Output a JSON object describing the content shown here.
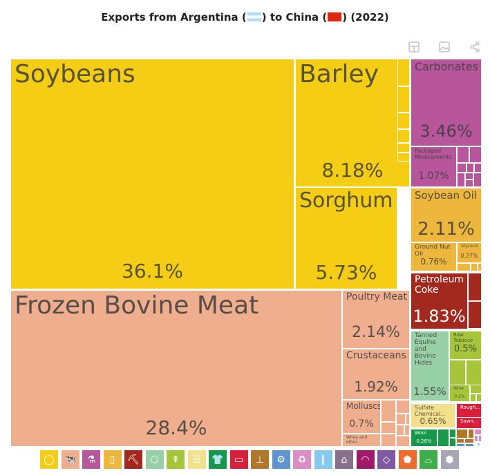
{
  "title": {
    "prefix": "Exports from Argentina (",
    "mid": ") to China (",
    "suffix": ") (2022)"
  },
  "toolbar": [
    "table-icon",
    "image-icon",
    "share-icon"
  ],
  "chart_data": {
    "type": "treemap",
    "title": "Exports from Argentina to China (2022)",
    "items": [
      {
        "name": "Soybeans",
        "value": "36.1%",
        "color": "#f5cd14"
      },
      {
        "name": "Frozen Bovine Meat",
        "value": "28.4%",
        "color": "#efae8e"
      },
      {
        "name": "Barley",
        "value": "8.18%",
        "color": "#f5cd14"
      },
      {
        "name": "Sorghum",
        "value": "5.73%",
        "color": "#f5cd14"
      },
      {
        "name": "Carbonates",
        "value": "3.46%",
        "color": "#b7569b"
      },
      {
        "name": "Poultry Meat",
        "value": "2.14%",
        "color": "#efae8e"
      },
      {
        "name": "Soybean Oil",
        "value": "2.11%",
        "color": "#edb63c"
      },
      {
        "name": "Crustaceans",
        "value": "1.92%",
        "color": "#efae8e"
      },
      {
        "name": "Petroleum Coke",
        "value": "1.83%",
        "color": "#a3291f"
      },
      {
        "name": "Tanned Equine and Bovine Hides",
        "value": "1.55%",
        "color": "#98d0a6"
      },
      {
        "name": "Packaged Medicaments",
        "value": "1.07%",
        "color": "#b7569b"
      },
      {
        "name": "Ground Nut Oil",
        "value": "0.76%",
        "color": "#edb63c"
      },
      {
        "name": "Molluscs",
        "value": "0.7%",
        "color": "#efae8e"
      },
      {
        "name": "Sulfate Chemical...",
        "value": "0.65%",
        "color": "#f3e08a"
      },
      {
        "name": "Raw Tobacco",
        "value": "0.5%",
        "color": "#a6c63a"
      },
      {
        "name": "Glycerol",
        "value": "0.27%",
        "color": "#edb63c"
      },
      {
        "name": "Wool",
        "value": "0.26%",
        "color": "#16994a"
      },
      {
        "name": "Wine",
        "value": "0.2%",
        "color": "#a6c63a"
      },
      {
        "name": "Whey and other...",
        "value": "",
        "color": "#efae8e"
      },
      {
        "name": "Rough...",
        "value": "",
        "color": "#da1f3d"
      },
      {
        "name": "Sawn...",
        "value": "",
        "color": "#da1f3d"
      }
    ]
  },
  "legend_icons": [
    {
      "icon": "fruit-icon",
      "color": "#f5cd14"
    },
    {
      "icon": "animal-icon",
      "color": "#efae8e"
    },
    {
      "icon": "flask-icon",
      "color": "#b7569b"
    },
    {
      "icon": "jar-icon",
      "color": "#edb63c"
    },
    {
      "icon": "pickaxe-icon",
      "color": "#a3291f"
    },
    {
      "icon": "hide-icon",
      "color": "#98d0a6"
    },
    {
      "icon": "wheat-icon",
      "color": "#a6c63a"
    },
    {
      "icon": "paper-icon",
      "color": "#f3e08a"
    },
    {
      "icon": "shirt-icon",
      "color": "#16994a"
    },
    {
      "icon": "plastic-icon",
      "color": "#da1f3d"
    },
    {
      "icon": "anvil-icon",
      "color": "#b0762a"
    },
    {
      "icon": "gear-icon",
      "color": "#5f94cf"
    },
    {
      "icon": "recycle-icon",
      "color": "#db8ec4"
    },
    {
      "icon": "road-icon",
      "color": "#86c9ee"
    },
    {
      "icon": "easel-icon",
      "color": "#86708c"
    },
    {
      "icon": "gauge-icon",
      "color": "#a1196b"
    },
    {
      "icon": "diamond-icon",
      "color": "#7f5aa2"
    },
    {
      "icon": "stone-icon",
      "color": "#ec6b2d"
    },
    {
      "icon": "shoe-icon",
      "color": "#3dae49"
    },
    {
      "icon": "box-icon",
      "color": "#a6a6b4"
    }
  ]
}
